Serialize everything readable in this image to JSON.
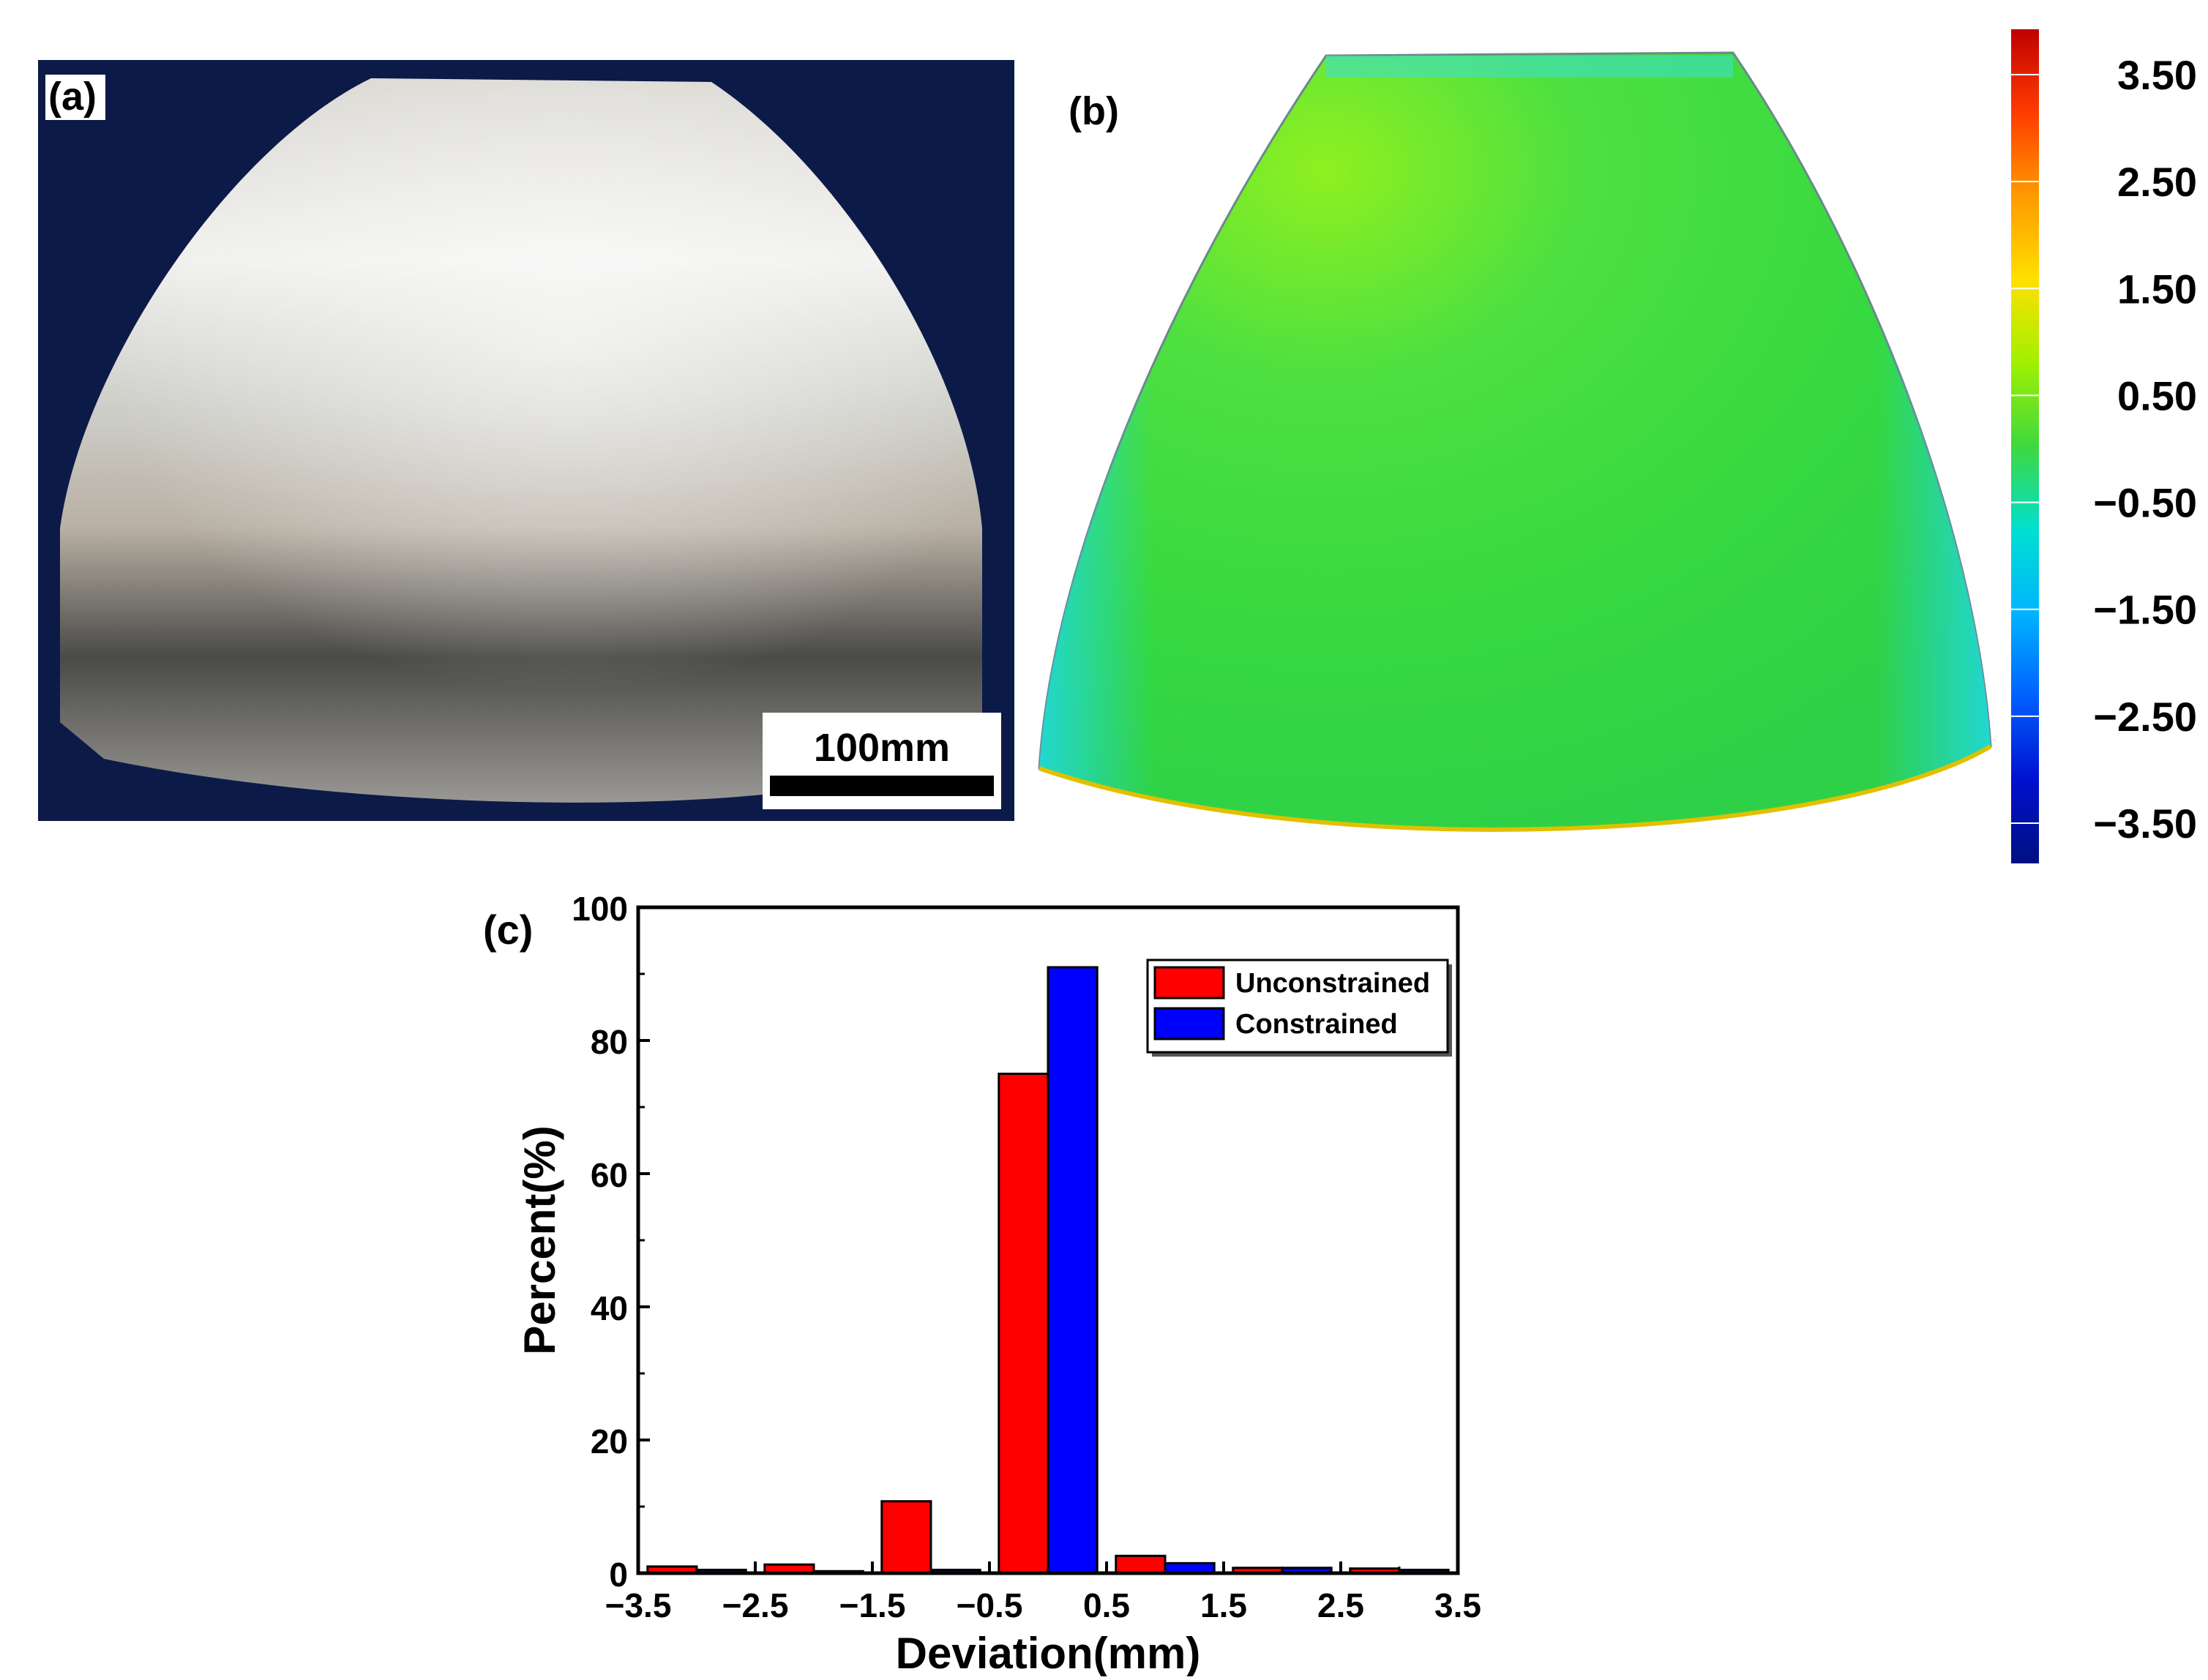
{
  "panels": {
    "a": {
      "label": "(a)",
      "scale_bar_label": "100mm"
    },
    "b": {
      "label": "(b)"
    },
    "c": {
      "label": "(c)"
    }
  },
  "colorbar": {
    "tick_labels": [
      "3.50",
      "2.50",
      "1.50",
      "0.50",
      "−0.50",
      "−1.50",
      "−2.50",
      "−3.50"
    ],
    "colors": [
      "#c00000",
      "#ff3c00",
      "#ff9a00",
      "#ffe000",
      "#a0f000",
      "#3fd83f",
      "#00e0d0",
      "#00b4ff",
      "#0060ff",
      "#0010d0",
      "#001080"
    ]
  },
  "chart_data": {
    "type": "bar",
    "xlabel": "Deviation(mm)",
    "ylabel": "Percent(%)",
    "ylim": [
      0,
      100
    ],
    "xlim": [
      -3.5,
      3.5
    ],
    "yticks": [
      0,
      20,
      40,
      60,
      80,
      100
    ],
    "xtick_labels": [
      "−3.5",
      "−2.5",
      "−1.5",
      "−0.5",
      "0.5",
      "1.5",
      "2.5",
      "3.5"
    ],
    "categories": [
      "-3.5 to -2.5",
      "-2.5 to -1.5",
      "-1.5 to -0.5",
      "-0.5 to 0.5",
      "0.5 to 1.5",
      "1.5 to 2.5",
      "2.5 to 3.5"
    ],
    "bin_edges": [
      -3.5,
      -2.5,
      -1.5,
      -0.5,
      0.5,
      1.5,
      2.5,
      3.5
    ],
    "series": [
      {
        "name": "Unconstrained",
        "color": "#ff0000",
        "values": [
          1.0,
          1.3,
          10.8,
          75.0,
          2.6,
          0.8,
          0.7
        ]
      },
      {
        "name": "Constrained",
        "color": "#0000ff",
        "values": [
          0.5,
          0.3,
          0.5,
          91.0,
          1.5,
          0.8,
          0.5
        ]
      }
    ],
    "legend_position": "top-right",
    "grid": false
  }
}
